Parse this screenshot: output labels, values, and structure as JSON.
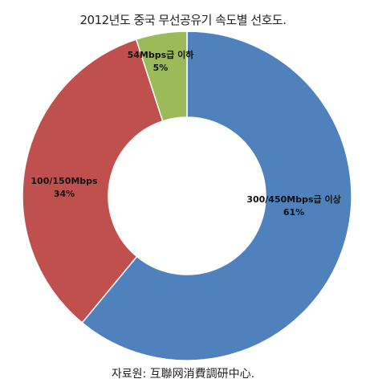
{
  "chart_data": {
    "type": "pie",
    "style": "donut",
    "title": "2012년도 중국 무선공유기 속도별 선호도.",
    "source": "자료원: 互聯网消費調研中心.",
    "slices": [
      {
        "label": "300/450Mbps급 이상",
        "value": 61,
        "display": "61%",
        "color": "#4f81bd"
      },
      {
        "label": "100/150Mbps",
        "value": 34,
        "display": "34%",
        "color": "#c0504d"
      },
      {
        "label": "54Mbps급 이하",
        "value": 5,
        "display": "5%",
        "color": "#9bbb59"
      }
    ]
  }
}
